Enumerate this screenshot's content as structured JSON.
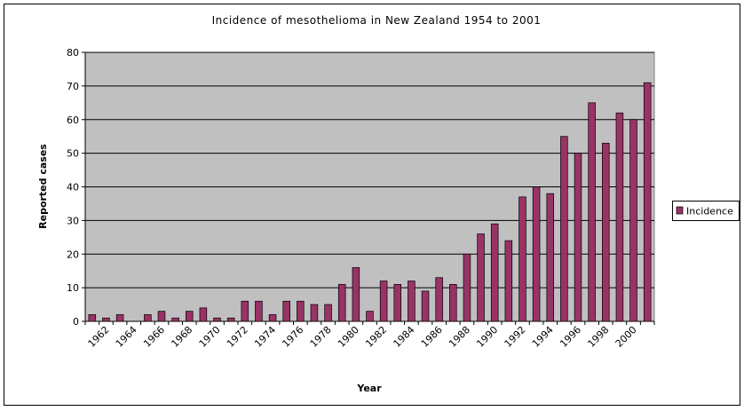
{
  "chart_data": {
    "type": "bar",
    "title": "Incidence of mesothelioma in New Zealand 1954 to 2001",
    "x_label": "Year",
    "y_label": "Reported cases",
    "categories": [
      null,
      "1962",
      null,
      "1964",
      null,
      "1966",
      null,
      "1968",
      null,
      "1970",
      null,
      "1972",
      null,
      "1974",
      null,
      "1976",
      null,
      "1978",
      null,
      "1980",
      null,
      "1982",
      null,
      "1984",
      null,
      "1986",
      null,
      "1988",
      null,
      "1990",
      null,
      "1992",
      null,
      "1994",
      null,
      "1996",
      null,
      "1998",
      null,
      "2000",
      null
    ],
    "series": [
      {
        "name": "Incidence",
        "color": "#993366",
        "values": [
          2,
          1,
          2,
          0,
          2,
          3,
          1,
          3,
          4,
          1,
          1,
          6,
          6,
          2,
          6,
          6,
          5,
          5,
          11,
          16,
          3,
          12,
          11,
          12,
          9,
          13,
          11,
          20,
          26,
          29,
          24,
          37,
          40,
          38,
          55,
          50,
          65,
          53,
          62,
          60,
          71
        ]
      }
    ],
    "ylim": [
      0,
      80
    ],
    "yticks": [
      0,
      10,
      20,
      30,
      40,
      50,
      60,
      70,
      80
    ],
    "grid": true,
    "legend": "right"
  }
}
